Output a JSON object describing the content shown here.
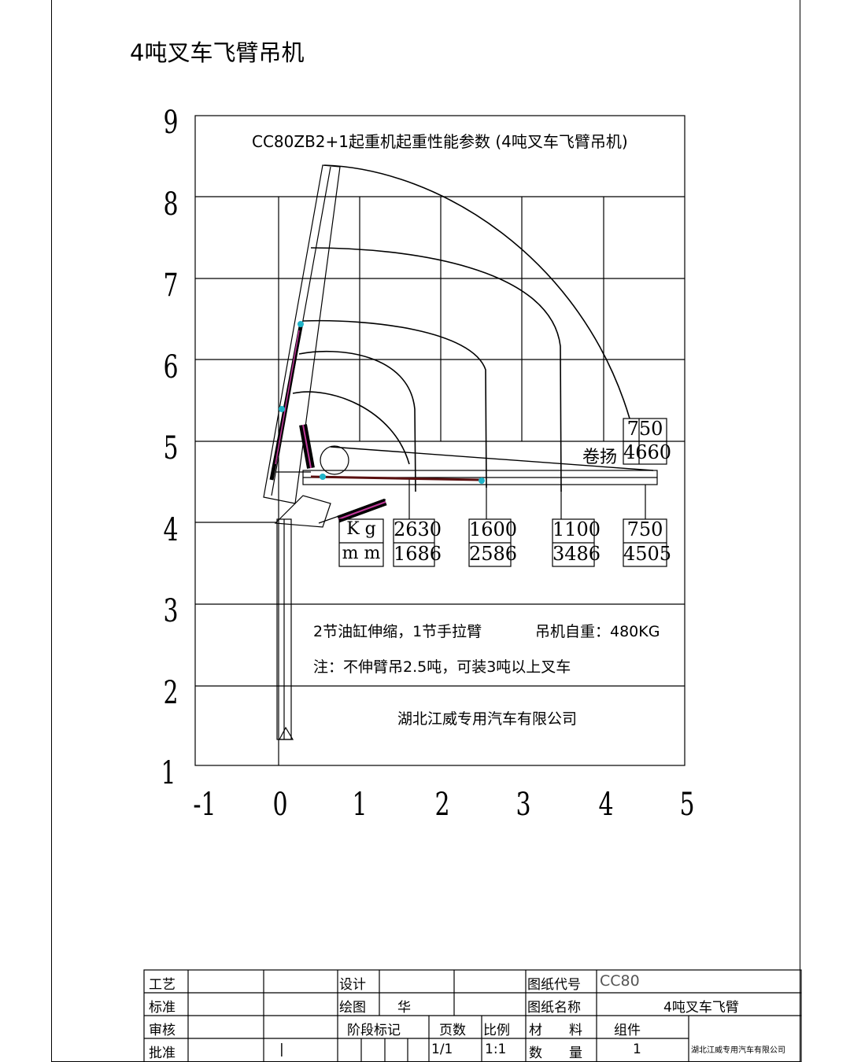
{
  "page_title": "4吨叉车飞臂吊机",
  "chart": {
    "heading": "CC80ZB2+1起重机起重性能参数  (4吨叉车飞臂吊机)",
    "y_ticks": [
      "9",
      "8",
      "7",
      "6",
      "5",
      "4",
      "3",
      "2",
      "1"
    ],
    "x_ticks": [
      "-1",
      "0",
      "1",
      "2",
      "3",
      "4",
      "5"
    ],
    "unit_kg": "K g",
    "unit_mm": "m m",
    "loads": [
      {
        "kg": "2630",
        "mm": "1686"
      },
      {
        "kg": "1600",
        "mm": "2586"
      },
      {
        "kg": "1100",
        "mm": "3486"
      },
      {
        "kg": "750",
        "mm": "4505"
      }
    ],
    "winch_label": "卷扬",
    "winch": {
      "kg": "750",
      "mm": "4660"
    },
    "note1": "2节油缸伸缩，1节手拉臂",
    "self_weight": "吊机自重：480KG",
    "note2": "注：不伸臂吊2.5吨，可装3吨以上叉车",
    "company": "湖北江威专用汽车有限公司",
    "colors": {
      "cylinder": "#c0399a",
      "joint": "#1fb3c8",
      "line": "#000000"
    }
  },
  "title_block": {
    "process": "工艺",
    "standard": "标准",
    "review": "审核",
    "approve": "批准",
    "design": "设计",
    "draw": "绘图",
    "drawer": "华",
    "stage_mark": "阶段标记",
    "pages": "页数",
    "scale": "比例",
    "page_value": "1/1",
    "scale_value": "1:1",
    "approve_mark": "|",
    "drawing_code_label": "图纸代号",
    "drawing_code": "CC80",
    "drawing_name_label": "图纸名称",
    "drawing_name": "4吨叉车飞臂",
    "material": "材　　料",
    "component": "组件",
    "quantity": "数　　量",
    "quantity_value": "1",
    "company": "湖北江威专用汽车有限公司"
  }
}
